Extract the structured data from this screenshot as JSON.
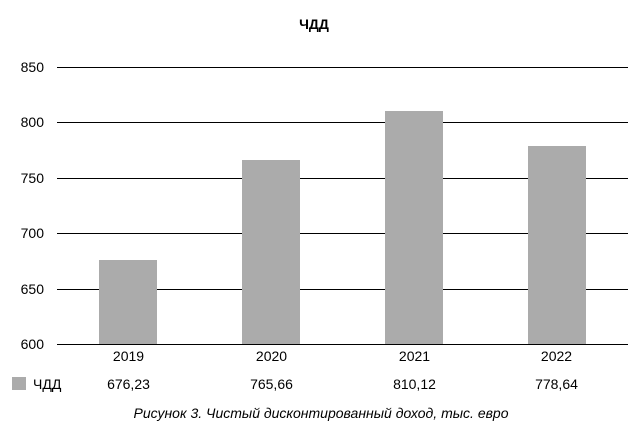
{
  "chart_data": {
    "type": "bar",
    "title": "ЧДД",
    "categories": [
      "2019",
      "2020",
      "2021",
      "2022"
    ],
    "series": [
      {
        "name": "ЧДД",
        "values": [
          676.23,
          765.66,
          810.12,
          778.64
        ]
      }
    ],
    "value_labels": [
      "676,23",
      "765,66",
      "810,12",
      "778,64"
    ],
    "xlabel": "",
    "ylabel": "",
    "ylim": [
      600,
      850
    ],
    "ytick_interval": 50,
    "ytick_labels": [
      "850",
      "800",
      "750",
      "700",
      "650",
      "600"
    ],
    "grid": true,
    "gridline_color": "#000000",
    "bar_color": "#ababab",
    "background_color": "#ffffff",
    "legend_position": "bottom-left-table",
    "caption": "Рисунок 3. Чистый дисконтированный доход, тыс. евро"
  }
}
